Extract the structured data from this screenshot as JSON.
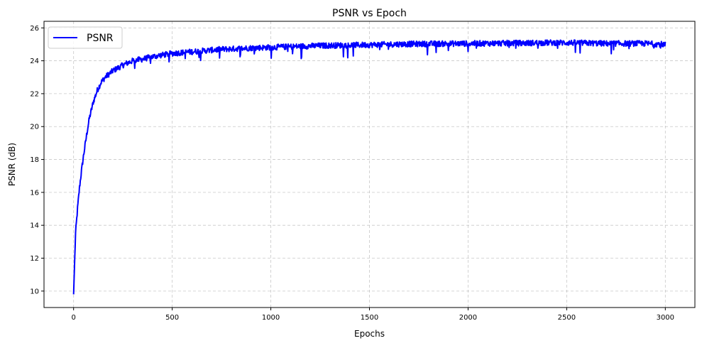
{
  "chart_data": {
    "type": "line",
    "title": "PSNR vs Epoch",
    "xlabel": "Epochs",
    "ylabel": "PSNR (dB)",
    "xlim": [
      -150,
      3150
    ],
    "ylim": [
      9,
      26.4
    ],
    "xticks": [
      0,
      500,
      1000,
      1500,
      2000,
      2500,
      3000
    ],
    "yticks": [
      10,
      12,
      14,
      16,
      18,
      20,
      22,
      24,
      26
    ],
    "grid": true,
    "legend_position": "top-left",
    "series": [
      {
        "name": "PSNR",
        "color": "#0000ff",
        "x": [
          0,
          10,
          20,
          30,
          40,
          50,
          60,
          70,
          80,
          90,
          100,
          120,
          140,
          160,
          180,
          200,
          230,
          260,
          300,
          350,
          400,
          450,
          500,
          550,
          600,
          650,
          700,
          750,
          800,
          850,
          900,
          950,
          1000,
          1100,
          1200,
          1300,
          1400,
          1500,
          1600,
          1700,
          1800,
          1900,
          2000,
          2100,
          2200,
          2300,
          2400,
          2500,
          2600,
          2700,
          2800,
          2900,
          3000
        ],
        "y": [
          9.8,
          13.5,
          15.0,
          16.3,
          17.3,
          18.2,
          19.0,
          19.8,
          20.5,
          21.0,
          21.5,
          22.2,
          22.7,
          23.0,
          23.2,
          23.4,
          23.6,
          23.8,
          24.0,
          24.1,
          24.25,
          24.35,
          24.45,
          24.5,
          24.55,
          24.6,
          24.65,
          24.7,
          24.72,
          24.75,
          24.78,
          24.8,
          24.82,
          24.86,
          24.9,
          24.93,
          24.95,
          24.97,
          25.0,
          25.02,
          25.03,
          25.04,
          25.05,
          25.06,
          25.07,
          25.08,
          25.1,
          25.1,
          25.08,
          25.05,
          25.05,
          25.05,
          25.0
        ]
      }
    ]
  }
}
